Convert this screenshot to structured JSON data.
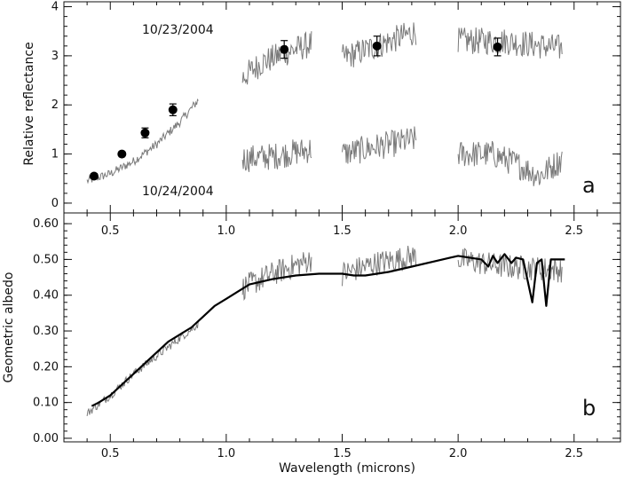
{
  "chart_data": [
    {
      "panel": "a",
      "type": "line",
      "panel_label": "a",
      "ylabel": "Relative reflectance",
      "xlim": [
        0.3,
        2.7
      ],
      "ylim": [
        -0.2,
        4.1
      ],
      "yticks": [
        "0",
        "1",
        "2",
        "3",
        "4"
      ],
      "annotations": [
        "10/23/2004",
        "10/24/2004"
      ],
      "series": [
        {
          "kind": "spectrum",
          "x": [
            0.4,
            0.88
          ],
          "y": [
            [
              0.4,
              0.45
            ],
            [
              0.5,
              0.6
            ],
            [
              0.6,
              0.85
            ],
            [
              0.7,
              1.2
            ],
            [
              0.8,
              1.65
            ],
            [
              0.88,
              2.1
            ]
          ]
        },
        {
          "kind": "spectrum",
          "x": [
            1.07,
            1.37
          ],
          "y": [
            [
              1.07,
              2.55
            ],
            [
              1.15,
              2.85
            ],
            [
              1.25,
              3.05
            ],
            [
              1.37,
              3.25
            ]
          ]
        },
        {
          "kind": "spectrum",
          "x": [
            1.5,
            1.82
          ],
          "y": [
            [
              1.5,
              2.95
            ],
            [
              1.65,
              3.2
            ],
            [
              1.82,
              3.5
            ]
          ]
        },
        {
          "kind": "spectrum",
          "x": [
            2.0,
            2.45
          ],
          "y": [
            [
              2.0,
              3.3
            ],
            [
              2.2,
              3.3
            ],
            [
              2.45,
              3.15
            ]
          ]
        },
        {
          "kind": "spectrum",
          "x": [
            1.07,
            1.37
          ],
          "y": [
            [
              1.07,
              0.9
            ],
            [
              1.2,
              0.95
            ],
            [
              1.37,
              1.1
            ]
          ]
        },
        {
          "kind": "spectrum",
          "x": [
            1.5,
            1.82
          ],
          "y": [
            [
              1.5,
              1.0
            ],
            [
              1.65,
              1.15
            ],
            [
              1.82,
              1.3
            ]
          ]
        },
        {
          "kind": "spectrum",
          "x": [
            2.0,
            2.45
          ],
          "y": [
            [
              2.0,
              1.0
            ],
            [
              2.15,
              1.0
            ],
            [
              2.25,
              0.8
            ],
            [
              2.35,
              0.55
            ],
            [
              2.45,
              0.9
            ]
          ]
        }
      ],
      "points": [
        {
          "x": 0.43,
          "y": 0.55,
          "err": 0.05
        },
        {
          "x": 0.55,
          "y": 1.0,
          "err": 0.04
        },
        {
          "x": 0.65,
          "y": 1.43,
          "err": 0.1
        },
        {
          "x": 0.77,
          "y": 1.9,
          "err": 0.12
        },
        {
          "x": 1.25,
          "y": 3.13,
          "err": 0.18
        },
        {
          "x": 1.65,
          "y": 3.2,
          "err": 0.2
        },
        {
          "x": 2.17,
          "y": 3.18,
          "err": 0.18
        }
      ]
    },
    {
      "panel": "b",
      "type": "line",
      "panel_label": "b",
      "xlabel": "Wavelength (microns)",
      "ylabel": "Geometric albedo",
      "xlim": [
        0.3,
        2.7
      ],
      "ylim": [
        -0.01,
        0.63
      ],
      "xticks": [
        "0.5",
        "1.0",
        "1.5",
        "2.0",
        "2.5"
      ],
      "yticks": [
        "0.00",
        "0.10",
        "0.20",
        "0.30",
        "0.40",
        "0.50",
        "0.60"
      ],
      "model": {
        "x": [
          0.42,
          0.45,
          0.5,
          0.55,
          0.6,
          0.65,
          0.7,
          0.75,
          0.8,
          0.85,
          0.9,
          0.95,
          1.0,
          1.05,
          1.1,
          1.2,
          1.3,
          1.4,
          1.5,
          1.55,
          1.6,
          1.65,
          1.7,
          1.8,
          1.9,
          2.0,
          2.05,
          2.1,
          2.13,
          2.15,
          2.17,
          2.2,
          2.23,
          2.25,
          2.28,
          2.3,
          2.32,
          2.34,
          2.36,
          2.38,
          2.4,
          2.43,
          2.46
        ],
        "y": [
          0.09,
          0.1,
          0.12,
          0.15,
          0.18,
          0.21,
          0.24,
          0.27,
          0.29,
          0.31,
          0.34,
          0.37,
          0.39,
          0.41,
          0.43,
          0.445,
          0.455,
          0.46,
          0.46,
          0.455,
          0.455,
          0.46,
          0.465,
          0.48,
          0.495,
          0.51,
          0.505,
          0.5,
          0.48,
          0.51,
          0.49,
          0.515,
          0.49,
          0.505,
          0.5,
          0.44,
          0.38,
          0.49,
          0.5,
          0.37,
          0.5,
          0.5,
          0.5
        ]
      },
      "observed": [
        {
          "x": [
            0.4,
            0.88
          ],
          "y": [
            [
              0.4,
              0.07
            ],
            [
              0.5,
              0.12
            ],
            [
              0.6,
              0.18
            ],
            [
              0.7,
              0.23
            ],
            [
              0.8,
              0.28
            ],
            [
              0.88,
              0.32
            ]
          ]
        },
        {
          "x": [
            1.07,
            1.37
          ],
          "y": [
            [
              1.07,
              0.42
            ],
            [
              1.2,
              0.46
            ],
            [
              1.37,
              0.5
            ]
          ]
        },
        {
          "x": [
            1.5,
            1.82
          ],
          "y": [
            [
              1.5,
              0.46
            ],
            [
              1.65,
              0.49
            ],
            [
              1.82,
              0.51
            ]
          ]
        },
        {
          "x": [
            2.0,
            2.45
          ],
          "y": [
            [
              2.0,
              0.5
            ],
            [
              2.2,
              0.48
            ],
            [
              2.45,
              0.47
            ]
          ]
        }
      ]
    }
  ]
}
